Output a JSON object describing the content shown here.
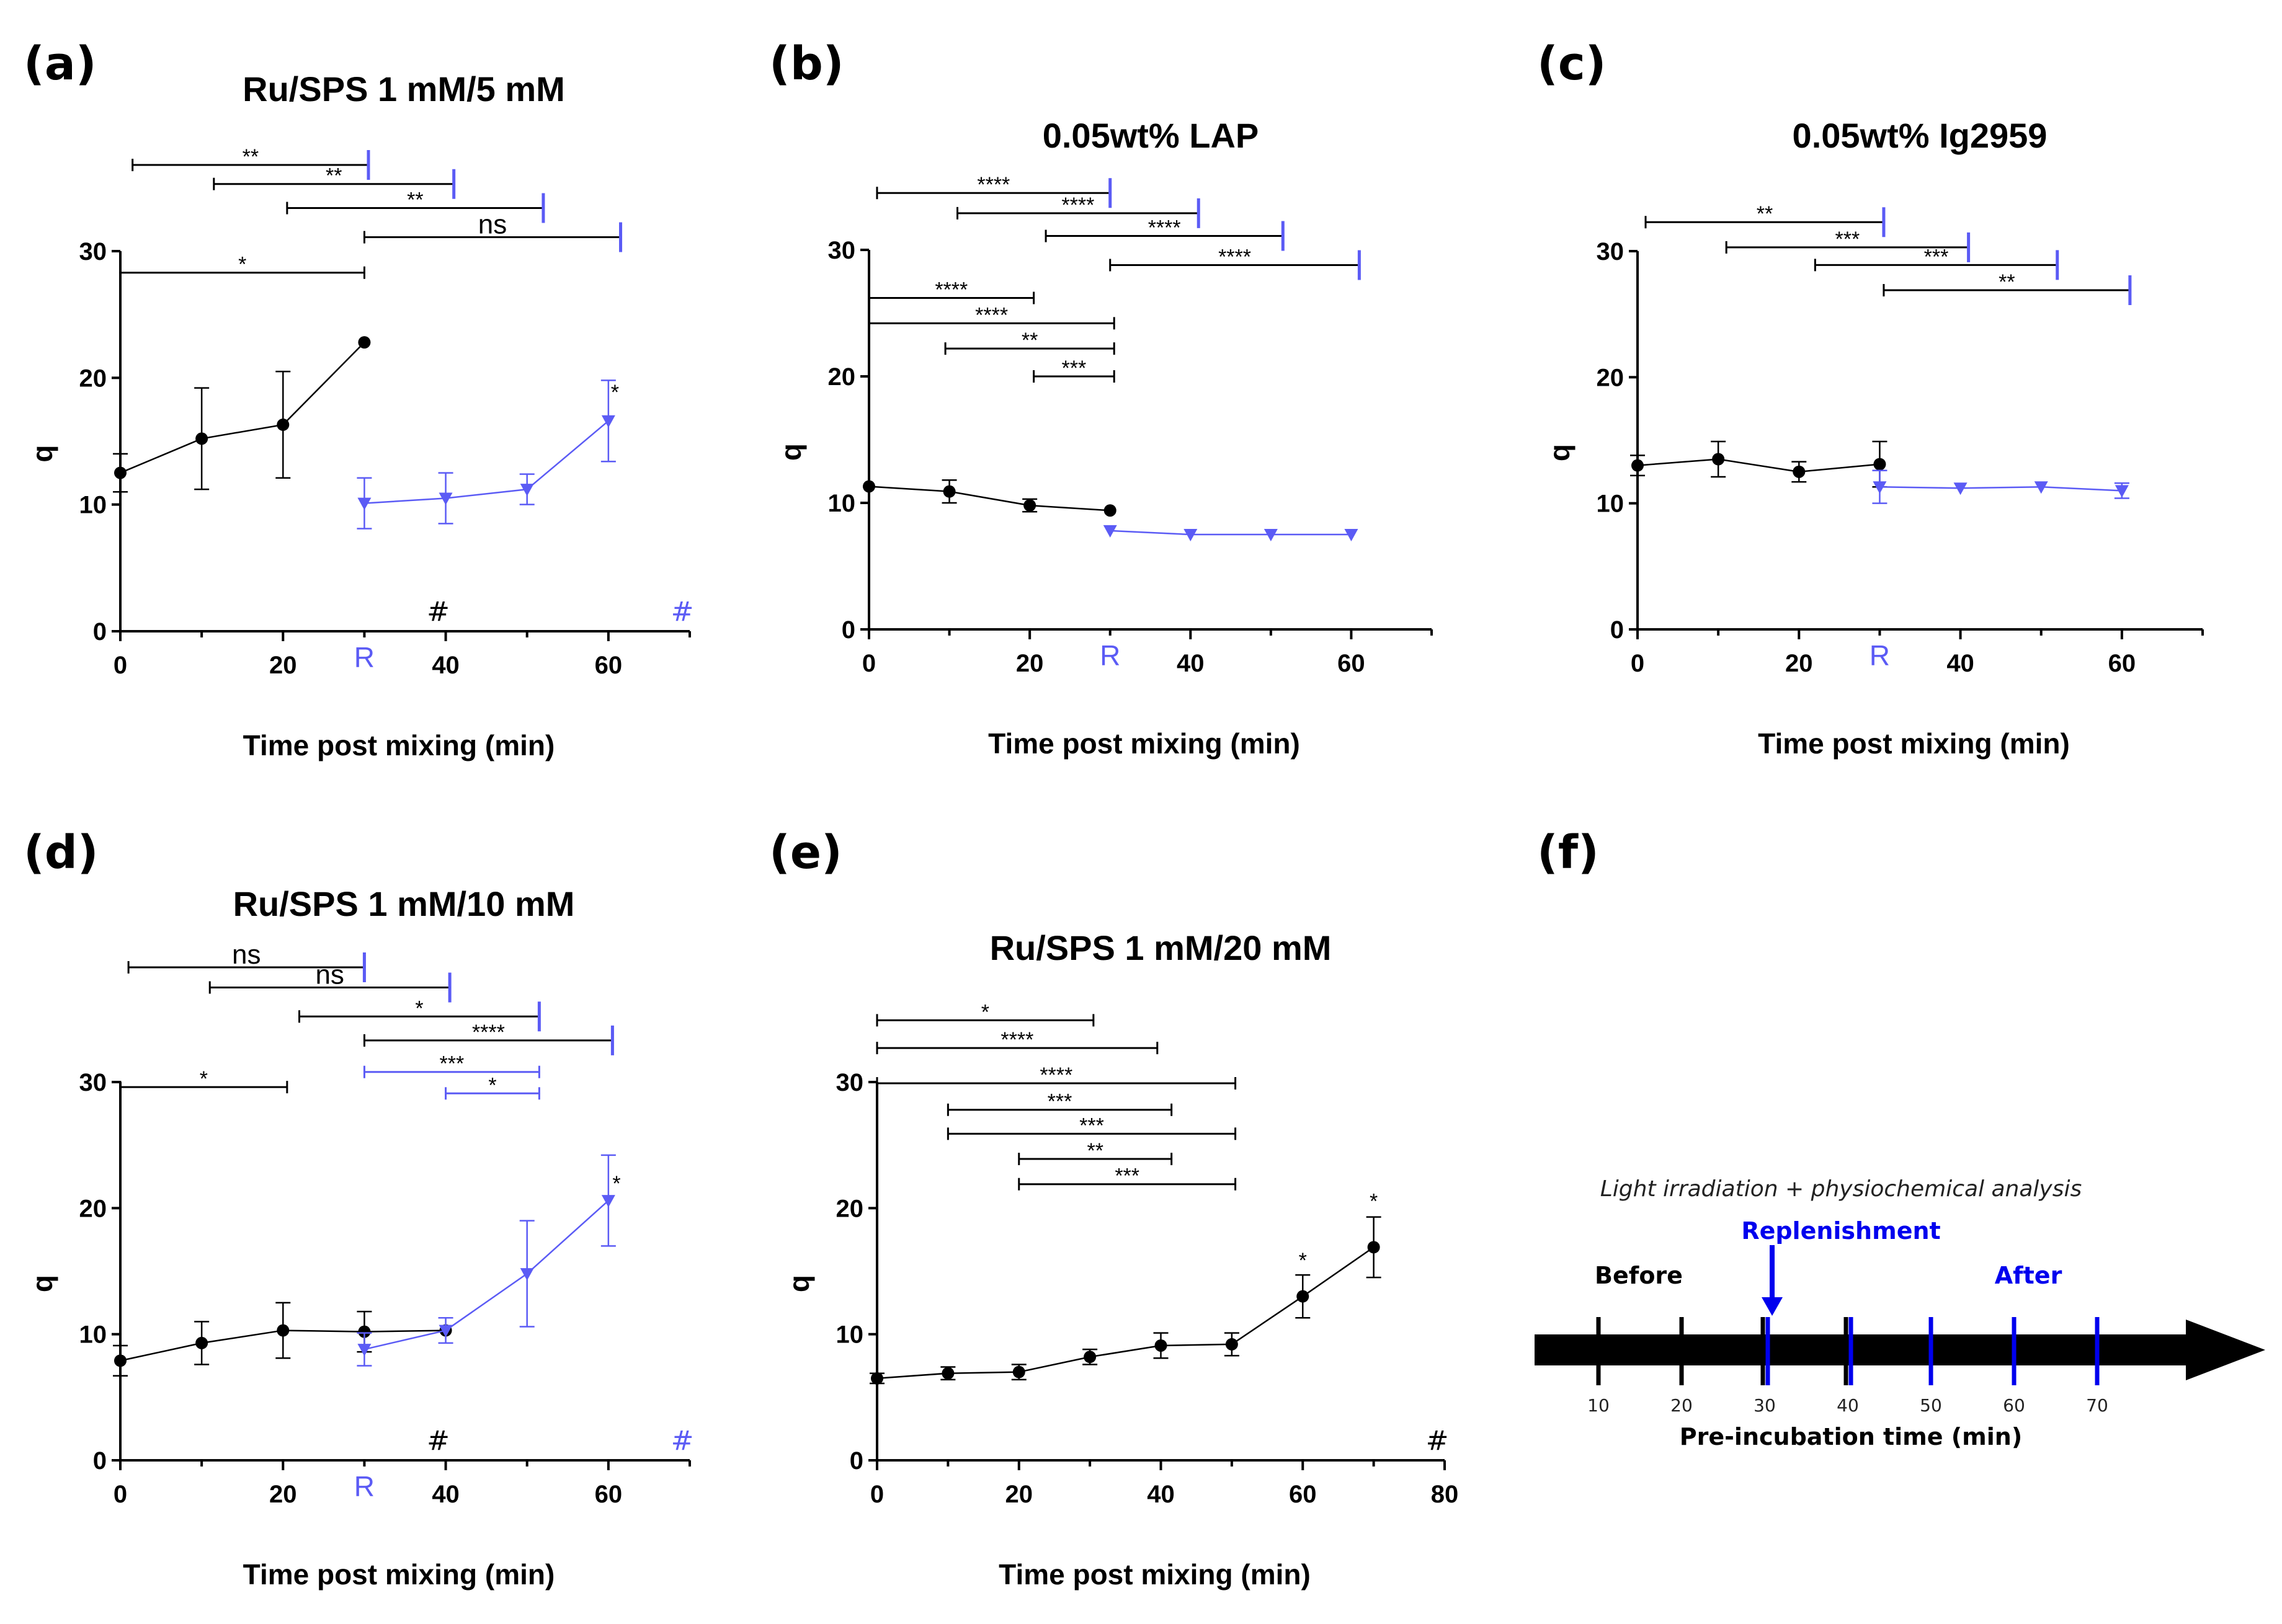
{
  "figure": {
    "panel_labels": [
      "(a)",
      "(b)",
      "(c)",
      "(d)",
      "(e)",
      "(f)"
    ]
  },
  "colors": {
    "before": "#000000",
    "after": "#5b5bf5",
    "timeline_after": "#0000ee"
  },
  "chart_data": [
    {
      "id": "a",
      "type": "line",
      "title": "Ru/SPS 1 mM/5 mM",
      "xlabel": "Time post mixing (min)",
      "ylabel": "q",
      "xlim": [
        0,
        70
      ],
      "ylim": [
        0,
        30
      ],
      "xticks": [
        {
          "v": 0,
          "label": "0"
        },
        {
          "v": 20,
          "label": "20"
        },
        {
          "v": 30,
          "label": "R",
          "color": "blue"
        },
        {
          "v": 40,
          "label": "40"
        },
        {
          "v": 60,
          "label": "60"
        }
      ],
      "yticks": [
        0,
        10,
        20,
        30
      ],
      "series": [
        {
          "name": "before",
          "color": "#000000",
          "marker": "circle",
          "x": [
            0,
            10,
            20,
            30
          ],
          "y": [
            12.5,
            15.2,
            16.3,
            22.8
          ],
          "err": [
            1.5,
            4.0,
            4.2,
            0
          ]
        },
        {
          "name": "after",
          "color": "#5b5bf5",
          "marker": "triangle",
          "x": [
            30,
            40,
            50,
            60
          ],
          "y": [
            10.1,
            10.5,
            11.2,
            16.6
          ],
          "err": [
            2.0,
            2.0,
            1.2,
            3.2
          ]
        }
      ],
      "point_marks": [
        {
          "x": 60.8,
          "y": 18.3,
          "text": "*",
          "color": "blue"
        }
      ],
      "hash_marks": [
        {
          "x": 40,
          "y": 1.6,
          "text": "#",
          "color": "black"
        },
        {
          "x": 70,
          "y": 1.6,
          "text": "#",
          "color": "blue"
        }
      ],
      "brackets": [
        {
          "x1": 1.5,
          "x2": 30.5,
          "y": 36.8,
          "label": "**",
          "end": "blue"
        },
        {
          "x1": 11.5,
          "x2": 41,
          "y": 35.3,
          "label": "**",
          "end": "blue"
        },
        {
          "x1": 20.5,
          "x2": 52,
          "y": 33.4,
          "label": "**",
          "end": "blue"
        },
        {
          "x1": 30,
          "x2": 61.5,
          "y": 31.1,
          "label": "ns",
          "end": "blue"
        },
        {
          "x1": 0,
          "x2": 30,
          "y": 28.3,
          "label": "*",
          "end": "none"
        }
      ]
    },
    {
      "id": "b",
      "type": "line",
      "title": "0.05wt% LAP",
      "xlabel": "Time post mixing (min)",
      "ylabel": "q",
      "xlim": [
        0,
        70
      ],
      "ylim": [
        0,
        30
      ],
      "xticks": [
        {
          "v": 0,
          "label": "0"
        },
        {
          "v": 20,
          "label": "20"
        },
        {
          "v": 30,
          "label": "R",
          "color": "blue"
        },
        {
          "v": 40,
          "label": "40"
        },
        {
          "v": 60,
          "label": "60"
        }
      ],
      "yticks": [
        0,
        10,
        20,
        30
      ],
      "series": [
        {
          "name": "before",
          "color": "#000000",
          "marker": "circle",
          "x": [
            0,
            10,
            20,
            30
          ],
          "y": [
            11.3,
            10.9,
            9.8,
            9.4
          ],
          "err": [
            0,
            0.9,
            0.5,
            0
          ]
        },
        {
          "name": "after",
          "color": "#5b5bf5",
          "marker": "triangle",
          "x": [
            30,
            40,
            50,
            60
          ],
          "y": [
            7.8,
            7.5,
            7.5,
            7.5
          ],
          "err": [
            0,
            0,
            0,
            0
          ]
        }
      ],
      "point_marks": [],
      "hash_marks": [],
      "brackets": [
        {
          "x1": 1,
          "x2": 30,
          "y": 34.5,
          "label": "****",
          "end": "blue"
        },
        {
          "x1": 11,
          "x2": 41,
          "y": 32.9,
          "label": "****",
          "end": "blue"
        },
        {
          "x1": 22,
          "x2": 51.5,
          "y": 31.1,
          "label": "****",
          "end": "blue"
        },
        {
          "x1": 30,
          "x2": 61,
          "y": 28.8,
          "label": "****",
          "end": "blue"
        },
        {
          "x1": 0,
          "x2": 20.5,
          "y": 26.2,
          "label": "****",
          "end": "none"
        },
        {
          "x1": 0,
          "x2": 30.5,
          "y": 24.2,
          "label": "****",
          "end": "none"
        },
        {
          "x1": 9.5,
          "x2": 30.5,
          "y": 22.2,
          "label": "**",
          "end": "none"
        },
        {
          "x1": 20.5,
          "x2": 30.5,
          "y": 20.0,
          "label": "***",
          "end": "none"
        }
      ]
    },
    {
      "id": "c",
      "type": "line",
      "title": "0.05wt% Ig2959",
      "xlabel": "Time post mixing (min)",
      "ylabel": "q",
      "xlim": [
        0,
        70
      ],
      "ylim": [
        0,
        30
      ],
      "xticks": [
        {
          "v": 0,
          "label": "0"
        },
        {
          "v": 20,
          "label": "20"
        },
        {
          "v": 30,
          "label": "R",
          "color": "blue"
        },
        {
          "v": 40,
          "label": "40"
        },
        {
          "v": 60,
          "label": "60"
        }
      ],
      "yticks": [
        0,
        10,
        20,
        30
      ],
      "series": [
        {
          "name": "before",
          "color": "#000000",
          "marker": "circle",
          "x": [
            0,
            10,
            20,
            30
          ],
          "y": [
            13.0,
            13.5,
            12.5,
            13.1
          ],
          "err": [
            0.8,
            1.4,
            0.8,
            1.8
          ]
        },
        {
          "name": "after",
          "color": "#5b5bf5",
          "marker": "triangle",
          "x": [
            30,
            40,
            50,
            60
          ],
          "y": [
            11.3,
            11.2,
            11.3,
            11.0
          ],
          "err": [
            1.3,
            0,
            0,
            0.6
          ]
        }
      ],
      "point_marks": [],
      "hash_marks": [],
      "brackets": [
        {
          "x1": 1,
          "x2": 30.5,
          "y": 32.3,
          "label": "**",
          "end": "blue"
        },
        {
          "x1": 11,
          "x2": 41,
          "y": 30.3,
          "label": "***",
          "end": "blue"
        },
        {
          "x1": 22,
          "x2": 52,
          "y": 28.9,
          "label": "***",
          "end": "blue"
        },
        {
          "x1": 30.5,
          "x2": 61,
          "y": 26.9,
          "label": "**",
          "end": "blue"
        }
      ]
    },
    {
      "id": "d",
      "type": "line",
      "title": "Ru/SPS 1 mM/10 mM",
      "xlabel": "Time post mixing (min)",
      "ylabel": "q",
      "xlim": [
        0,
        70
      ],
      "ylim": [
        0,
        30
      ],
      "xticks": [
        {
          "v": 0,
          "label": "0"
        },
        {
          "v": 20,
          "label": "20"
        },
        {
          "v": 30,
          "label": "R",
          "color": "blue"
        },
        {
          "v": 40,
          "label": "40"
        },
        {
          "v": 60,
          "label": "60"
        }
      ],
      "yticks": [
        0,
        10,
        20,
        30
      ],
      "series": [
        {
          "name": "before",
          "color": "#000000",
          "marker": "circle",
          "x": [
            0,
            10,
            20,
            30,
            40
          ],
          "y": [
            7.9,
            9.3,
            10.3,
            10.2,
            10.3
          ],
          "err": [
            1.2,
            1.7,
            2.2,
            1.6,
            0
          ]
        },
        {
          "name": "after",
          "color": "#5b5bf5",
          "marker": "triangle",
          "x": [
            30,
            40,
            50,
            60
          ],
          "y": [
            8.8,
            10.3,
            14.8,
            20.6
          ],
          "err": [
            1.3,
            1.0,
            4.2,
            3.6
          ]
        }
      ],
      "point_marks": [
        {
          "x": 61,
          "y": 21.4,
          "text": "*",
          "color": "blue"
        }
      ],
      "hash_marks": [
        {
          "x": 40,
          "y": 1.6,
          "text": "#",
          "color": "black"
        },
        {
          "x": 70,
          "y": 1.6,
          "text": "#",
          "color": "blue"
        }
      ],
      "brackets": [
        {
          "x1": 1,
          "x2": 30,
          "y": 39.1,
          "label": "ns",
          "end": "blue"
        },
        {
          "x1": 11,
          "x2": 40.5,
          "y": 37.5,
          "label": "ns",
          "end": "blue"
        },
        {
          "x1": 22,
          "x2": 51.5,
          "y": 35.2,
          "label": "*",
          "end": "blue"
        },
        {
          "x1": 30,
          "x2": 60.5,
          "y": 33.3,
          "label": "****",
          "end": "blue"
        },
        {
          "x1": 30,
          "x2": 51.5,
          "y": 30.8,
          "label": "***",
          "end": "none",
          "color": "blue"
        },
        {
          "x1": 40,
          "x2": 51.5,
          "y": 29.1,
          "label": "*",
          "end": "none",
          "color": "blue"
        },
        {
          "x1": 0,
          "x2": 20.5,
          "y": 29.6,
          "label": "*",
          "end": "none"
        }
      ]
    },
    {
      "id": "e",
      "type": "line",
      "title": "Ru/SPS 1 mM/20 mM",
      "xlabel": "Time post mixing (min)",
      "ylabel": "q",
      "xlim": [
        0,
        80
      ],
      "ylim": [
        0,
        30
      ],
      "xticks": [
        {
          "v": 0,
          "label": "0"
        },
        {
          "v": 20,
          "label": "20"
        },
        {
          "v": 40,
          "label": "40"
        },
        {
          "v": 60,
          "label": "60"
        },
        {
          "v": 80,
          "label": "80"
        }
      ],
      "yticks": [
        0,
        10,
        20,
        30
      ],
      "series": [
        {
          "name": "before",
          "color": "#000000",
          "marker": "circle",
          "x": [
            0,
            10,
            20,
            30,
            40,
            50,
            60,
            70
          ],
          "y": [
            6.5,
            6.9,
            7.0,
            8.2,
            9.1,
            9.2,
            13.0,
            16.9
          ],
          "err": [
            0.4,
            0.5,
            0.6,
            0.6,
            1.0,
            0.9,
            1.7,
            2.4
          ]
        }
      ],
      "point_marks": [
        {
          "x": 60,
          "y": 15.3,
          "text": "*",
          "color": "black"
        },
        {
          "x": 70,
          "y": 20.0,
          "text": "*",
          "color": "black"
        }
      ],
      "hash_marks": [
        {
          "x": 80,
          "y": 1.6,
          "text": "#",
          "color": "black"
        }
      ],
      "brackets": [
        {
          "x1": 0,
          "x2": 30.5,
          "y": 34.9,
          "label": "*",
          "end": "none"
        },
        {
          "x1": 0,
          "x2": 39.5,
          "y": 32.7,
          "label": "****",
          "end": "none"
        },
        {
          "x1": 0,
          "x2": 50.5,
          "y": 29.9,
          "label": "****",
          "end": "none"
        },
        {
          "x1": 10,
          "x2": 41.5,
          "y": 27.8,
          "label": "***",
          "end": "none"
        },
        {
          "x1": 10,
          "x2": 50.5,
          "y": 25.9,
          "label": "***",
          "end": "none"
        },
        {
          "x1": 20,
          "x2": 41.5,
          "y": 23.9,
          "label": "**",
          "end": "none"
        },
        {
          "x1": 20,
          "x2": 50.5,
          "y": 21.9,
          "label": "***",
          "end": "none"
        }
      ]
    }
  ],
  "timeline": {
    "note": "Light irradiation + physiochemical analysis",
    "replenishment": "Replenishment",
    "before": "Before",
    "after": "After",
    "axis_label": "Pre-incubation time (min)",
    "ticks": [
      {
        "v": 10,
        "label": "10",
        "color": "black"
      },
      {
        "v": 20,
        "label": "20",
        "color": "black"
      },
      {
        "v": 30,
        "label": "30",
        "color": "both"
      },
      {
        "v": 40,
        "label": "40",
        "color": "both"
      },
      {
        "v": 50,
        "label": "50",
        "color": "blue"
      },
      {
        "v": 60,
        "label": "60",
        "color": "blue"
      },
      {
        "v": 70,
        "label": "70",
        "color": "blue"
      }
    ]
  }
}
